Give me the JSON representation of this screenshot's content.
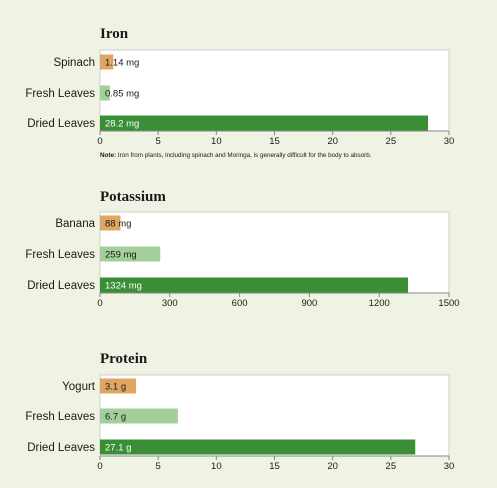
{
  "colors": {
    "background": "#eef3e3",
    "plot_background": "#ffffff",
    "reference": "#e0a562",
    "fresh_leaves": "#a3cf9b",
    "dried_leaves": "#3a8f36",
    "axis": "#888888"
  },
  "chart_data": [
    {
      "type": "bar",
      "orientation": "horizontal",
      "title": "Iron",
      "categories": [
        "Spinach",
        "Fresh Leaves",
        "Dried Leaves"
      ],
      "values": [
        1.14,
        0.85,
        28.2
      ],
      "data_labels": [
        "1.14 mg",
        "0.85 mg",
        "28.2 mg"
      ],
      "xlim": [
        0,
        30
      ],
      "xticks": [
        "0",
        "5",
        "10",
        "15",
        "20",
        "25",
        "30"
      ],
      "note": "Note: Iron from plants, including spinach and Moringa, is generally difficult for the body to absorb."
    },
    {
      "type": "bar",
      "orientation": "horizontal",
      "title": "Potassium",
      "categories": [
        "Banana",
        "Fresh Leaves",
        "Dried Leaves"
      ],
      "values": [
        88,
        259,
        1324
      ],
      "data_labels": [
        "88 mg",
        "259 mg",
        "1324 mg"
      ],
      "xlim": [
        0,
        1500
      ],
      "xticks": [
        "0",
        "300",
        "600",
        "900",
        "1200",
        "1500"
      ]
    },
    {
      "type": "bar",
      "orientation": "horizontal",
      "title": "Protein",
      "categories": [
        "Yogurt",
        "Fresh Leaves",
        "Dried Leaves"
      ],
      "values": [
        3.1,
        6.7,
        27.1
      ],
      "data_labels": [
        "3.1 g",
        "6.7 g",
        "27.1 g"
      ],
      "xlim": [
        0,
        30
      ],
      "xticks": [
        "0",
        "5",
        "10",
        "15",
        "20",
        "25",
        "30"
      ]
    }
  ]
}
